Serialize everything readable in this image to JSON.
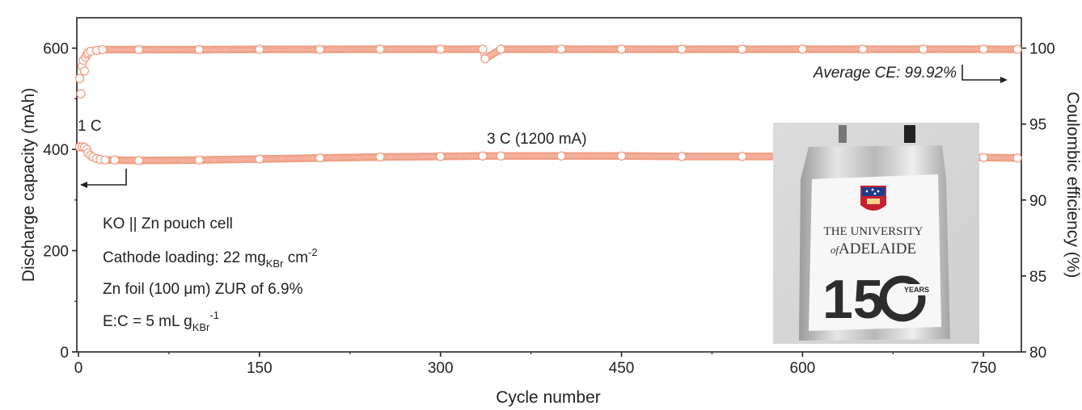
{
  "chart_data": {
    "type": "scatter",
    "x": {
      "label": "Cycle number",
      "range": [
        0,
        780
      ],
      "ticks": [
        0,
        150,
        300,
        450,
        600,
        750
      ]
    },
    "y_left": {
      "label": "Discharge capacity (mAh)",
      "range": [
        0,
        660
      ],
      "ticks": [
        0,
        200,
        400,
        600
      ]
    },
    "y_right": {
      "label": "Coulombic efficiency (%)",
      "range": [
        80,
        102
      ],
      "ticks": [
        80,
        85,
        90,
        95,
        100
      ]
    },
    "series": [
      {
        "axis": "left",
        "color": "#ef9e85",
        "points": [
          [
            1,
            405
          ],
          [
            3,
            405
          ],
          [
            5,
            404
          ],
          [
            7,
            400
          ],
          [
            8,
            393
          ],
          [
            10,
            388
          ],
          [
            12,
            385
          ],
          [
            15,
            382
          ],
          [
            18,
            380
          ],
          [
            22,
            379
          ],
          [
            30,
            379
          ],
          [
            50,
            378
          ],
          [
            100,
            379
          ],
          [
            150,
            381
          ],
          [
            200,
            383
          ],
          [
            250,
            385
          ],
          [
            300,
            386
          ],
          [
            335,
            387
          ],
          [
            350,
            387
          ],
          [
            400,
            387
          ],
          [
            450,
            387
          ],
          [
            500,
            386
          ],
          [
            550,
            386
          ],
          [
            600,
            386
          ],
          [
            650,
            385
          ],
          [
            700,
            385
          ],
          [
            750,
            384
          ],
          [
            778,
            383
          ]
        ]
      },
      {
        "axis": "right",
        "color": "#ef9e85",
        "points": [
          [
            1,
            98
          ],
          [
            2,
            97
          ],
          [
            3,
            98.8
          ],
          [
            4,
            99.2
          ],
          [
            5,
            98.5
          ],
          [
            6,
            99.4
          ],
          [
            7,
            99.6
          ],
          [
            8,
            99.7
          ],
          [
            10,
            99.8
          ],
          [
            15,
            99.85
          ],
          [
            20,
            99.9
          ],
          [
            50,
            99.9
          ],
          [
            100,
            99.9
          ],
          [
            150,
            99.92
          ],
          [
            200,
            99.92
          ],
          [
            250,
            99.93
          ],
          [
            300,
            99.93
          ],
          [
            335,
            99.93
          ],
          [
            337,
            99.3
          ],
          [
            350,
            99.93
          ],
          [
            400,
            99.93
          ],
          [
            450,
            99.93
          ],
          [
            500,
            99.93
          ],
          [
            550,
            99.93
          ],
          [
            600,
            99.93
          ],
          [
            650,
            99.93
          ],
          [
            700,
            99.93
          ],
          [
            750,
            99.93
          ],
          [
            778,
            99.92
          ]
        ]
      }
    ],
    "annotations": {
      "rate_1c": "1 C",
      "rate_3c": "3 C (1200 mA)",
      "average_ce": "Average CE: 99.92%",
      "cell": "KO || Zn pouch cell",
      "loading_prefix": "Cathode loading: 22 mg",
      "loading_sub": "KBr",
      "loading_unit": " cm",
      "loading_sup": "-2",
      "zn_foil": "Zn foil (100 μm) ZUR of 6.9%",
      "ec_prefix": "E:C = 5 mL g",
      "ec_sub": "KBr",
      "ec_sup": "-1"
    },
    "inset_photo": {
      "line1": "THE UNIVERSITY",
      "line2_italic": "of",
      "line2": "ADELAIDE",
      "big_number": "15",
      "years": "YEARS"
    },
    "grid": false
  }
}
